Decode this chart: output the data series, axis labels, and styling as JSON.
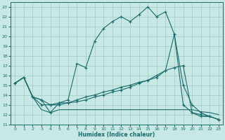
{
  "xlabel": "Humidex (Indice chaleur)",
  "xlim": [
    -0.5,
    23.5
  ],
  "ylim": [
    11,
    23.5
  ],
  "xticks": [
    0,
    1,
    2,
    3,
    4,
    5,
    6,
    7,
    8,
    9,
    10,
    11,
    12,
    13,
    14,
    15,
    16,
    17,
    18,
    19,
    20,
    21,
    22,
    23
  ],
  "yticks": [
    11,
    12,
    13,
    14,
    15,
    16,
    17,
    18,
    19,
    20,
    21,
    22,
    23
  ],
  "bg_color": "#c8e8e5",
  "grid_color": "#a8ceca",
  "line_color": "#1a6b6b",
  "line1_x": [
    0,
    1,
    2,
    3,
    4,
    5,
    6,
    7,
    8,
    9,
    10,
    11,
    12,
    13,
    14,
    15,
    16,
    17,
    18,
    19,
    20,
    21,
    22,
    23
  ],
  "line1_y": [
    15.2,
    15.8,
    13.8,
    13.5,
    12.2,
    13.2,
    13.5,
    17.2,
    16.8,
    19.5,
    20.8,
    21.5,
    22.0,
    21.5,
    22.2,
    23.0,
    22.0,
    22.5,
    20.2,
    15.0,
    13.0,
    12.2,
    11.8,
    11.5
  ],
  "line2_x": [
    0,
    1,
    2,
    3,
    4,
    5,
    6,
    7,
    8,
    9,
    10,
    11,
    12,
    13,
    14,
    15,
    16,
    17,
    18,
    19,
    20,
    21,
    22,
    23
  ],
  "line2_y": [
    15.2,
    15.8,
    13.8,
    13.5,
    13.0,
    13.2,
    13.2,
    13.3,
    13.5,
    13.8,
    14.0,
    14.3,
    14.5,
    14.8,
    15.2,
    15.5,
    15.8,
    16.5,
    16.8,
    17.0,
    12.2,
    12.0,
    11.8,
    11.5
  ],
  "line3_x": [
    0,
    1,
    2,
    3,
    4,
    5,
    6,
    7,
    8,
    9,
    10,
    11,
    12,
    13,
    14,
    15,
    16,
    17,
    18,
    19,
    20,
    21,
    22,
    23
  ],
  "line3_y": [
    15.2,
    15.8,
    13.8,
    12.5,
    12.2,
    12.5,
    12.5,
    12.5,
    12.5,
    12.5,
    12.5,
    12.5,
    12.5,
    12.5,
    12.5,
    12.5,
    12.5,
    12.5,
    12.5,
    12.5,
    12.5,
    12.3,
    12.2,
    12.0
  ],
  "line4_x": [
    0,
    1,
    2,
    3,
    4,
    5,
    6,
    7,
    8,
    9,
    10,
    11,
    12,
    13,
    14,
    15,
    16,
    17,
    18,
    19,
    20,
    21,
    22,
    23
  ],
  "line4_y": [
    15.2,
    15.8,
    13.8,
    13.0,
    13.0,
    13.0,
    13.2,
    13.5,
    13.8,
    14.0,
    14.3,
    14.5,
    14.8,
    15.0,
    15.3,
    15.5,
    16.0,
    16.5,
    20.2,
    13.0,
    12.2,
    11.8,
    11.8,
    11.5
  ]
}
